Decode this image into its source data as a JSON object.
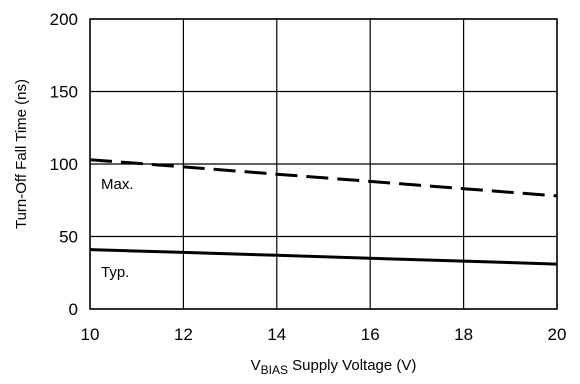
{
  "chart_data": {
    "type": "line",
    "title": "",
    "xlabel_main": "V",
    "xlabel_sub": "BIAS",
    "xlabel_rest": " Supply Voltage (V)",
    "ylabel": "Turn-Off Fall Time (ns)",
    "xlim": [
      10,
      20
    ],
    "ylim": [
      0,
      200
    ],
    "x_ticks": [
      10,
      12,
      14,
      16,
      18,
      20
    ],
    "y_ticks": [
      0,
      50,
      100,
      150,
      200
    ],
    "x_tick_labels": [
      "10",
      "12",
      "14",
      "16",
      "18",
      "20"
    ],
    "y_tick_labels": [
      "0",
      "50",
      "100",
      "150",
      "200"
    ],
    "grid": true,
    "series": [
      {
        "name": "Max.",
        "style": "dashed",
        "color": "#000000",
        "x": [
          10,
          12,
          14,
          16,
          18,
          20
        ],
        "y": [
          103,
          98,
          93,
          88,
          83,
          78
        ]
      },
      {
        "name": "Typ.",
        "style": "solid",
        "color": "#000000",
        "x": [
          10,
          12,
          14,
          16,
          18,
          20
        ],
        "y": [
          41,
          39,
          37,
          35,
          33,
          31
        ]
      }
    ]
  }
}
